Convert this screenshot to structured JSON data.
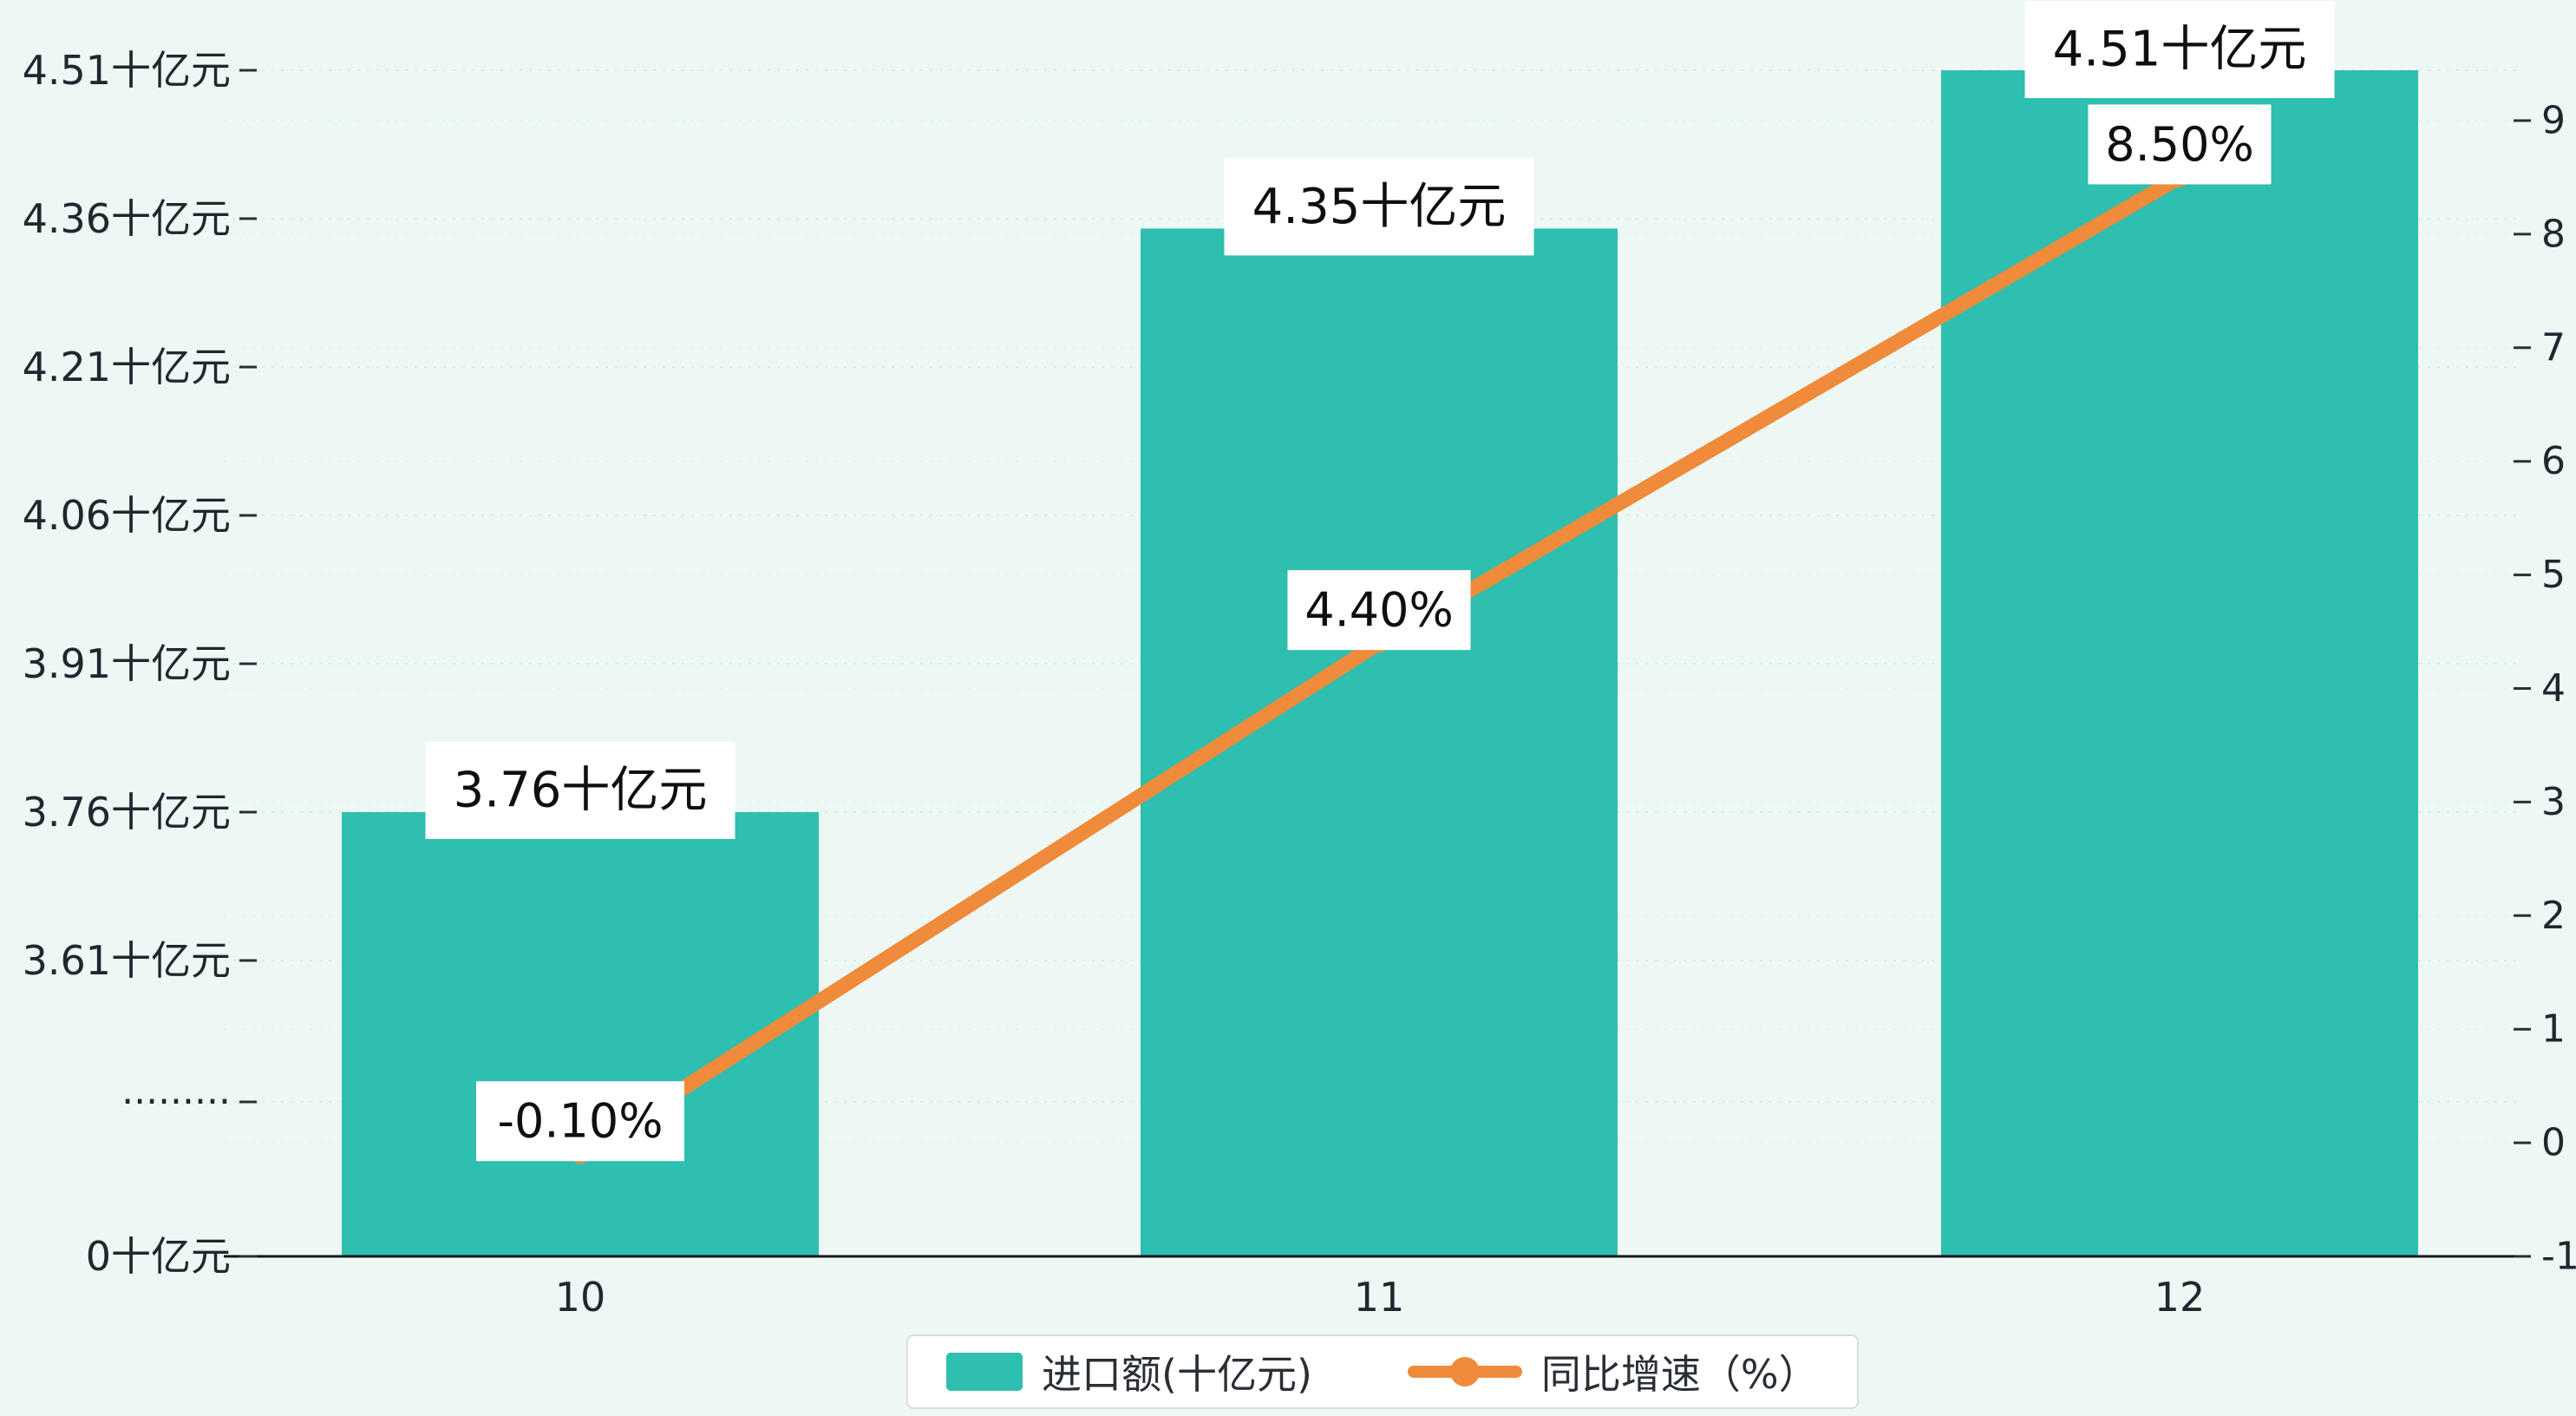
{
  "background": "#EDF8F4",
  "chart_data": {
    "type": "bar",
    "categories": [
      "10",
      "11",
      "12"
    ],
    "series": [
      {
        "name": "进口额(十亿元)",
        "type": "bar",
        "values": [
          3.76,
          4.35,
          4.51
        ],
        "labels": [
          "3.76十亿元",
          "4.35十亿元",
          "4.51十亿元"
        ],
        "color": "#2EBFB0"
      },
      {
        "name": "同比增速（%）",
        "type": "line",
        "values": [
          -0.1,
          4.4,
          8.5
        ],
        "labels": [
          "-0.10%",
          "4.40%",
          "8.50%"
        ],
        "color": "#EF8B3B"
      }
    ],
    "left_axis": {
      "step": 0.15,
      "ticks": [
        {
          "value": 4.51,
          "label": "4.51十亿元"
        },
        {
          "value": 4.36,
          "label": "4.36十亿元"
        },
        {
          "value": 4.21,
          "label": "4.21十亿元"
        },
        {
          "value": 4.06,
          "label": "4.06十亿元"
        },
        {
          "value": 3.91,
          "label": "3.91十亿元"
        },
        {
          "value": 3.76,
          "label": "3.76十亿元"
        },
        {
          "value": 3.61,
          "label": "3.61十亿元"
        }
      ],
      "break_label": "·········",
      "zero_label": "0十亿元"
    },
    "right_axis": {
      "min": -1,
      "max": 9,
      "tick_interval": 1,
      "tick_labels": [
        "-1",
        "0",
        "1",
        "2",
        "3",
        "4",
        "5",
        "6",
        "7",
        "8",
        "9"
      ]
    },
    "grid": true,
    "legend_position": "bottom"
  }
}
